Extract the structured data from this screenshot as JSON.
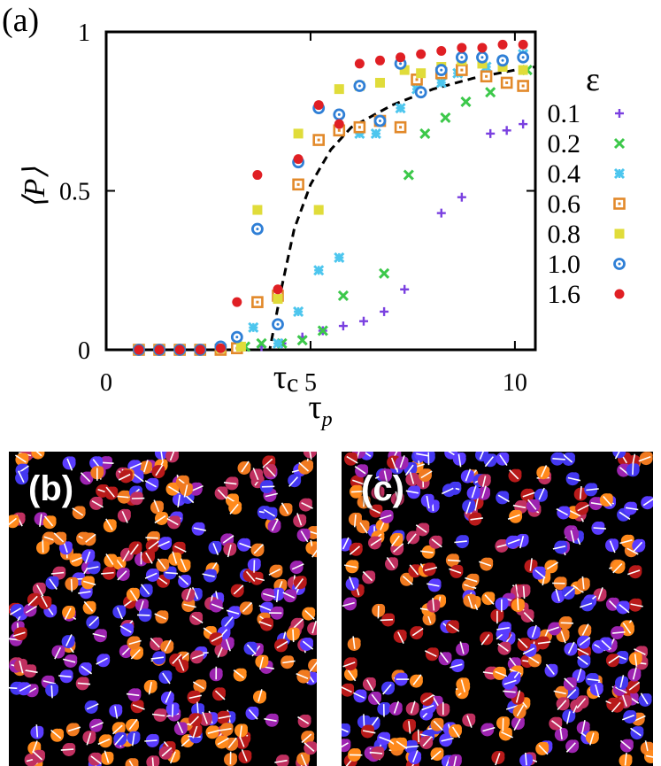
{
  "chart_data": {
    "type": "scatter",
    "panel_label": "(a)",
    "xlabel_main": "τ",
    "xlabel_sub": "p",
    "ylabel": "⟨P⟩",
    "xlim": [
      0,
      10.5
    ],
    "ylim": [
      0,
      1
    ],
    "xticks": [
      0,
      5,
      10
    ],
    "yticks": [
      0,
      0.5,
      1
    ],
    "xtick_labels": [
      "0",
      "5",
      "10"
    ],
    "ytick_labels": [
      "0",
      "0.5",
      "1"
    ],
    "critical_label_main": "τ",
    "critical_label_sub": "c",
    "critical_x": 4.0,
    "legend_title": "ε",
    "fit_curve": {
      "style": "dashed",
      "points": [
        [
          0,
          0
        ],
        [
          4.0,
          0
        ],
        [
          4.3,
          0.2
        ],
        [
          4.6,
          0.38
        ],
        [
          5.0,
          0.52
        ],
        [
          5.5,
          0.63
        ],
        [
          6.0,
          0.7
        ],
        [
          7.0,
          0.77
        ],
        [
          8.0,
          0.82
        ],
        [
          9.0,
          0.855
        ],
        [
          10.0,
          0.88
        ],
        [
          10.5,
          0.89
        ]
      ]
    },
    "series": [
      {
        "name": "0.1",
        "marker": "plus",
        "color": "#7a40e0",
        "x": [
          0.8,
          1.3,
          1.8,
          2.3,
          3.3,
          3.8,
          4.3,
          4.8,
          5.3,
          5.8,
          6.3,
          6.8,
          7.3,
          8.2,
          8.7,
          9.4,
          9.8,
          10.2
        ],
        "y": [
          0,
          0,
          0,
          0,
          0.005,
          0.01,
          0.02,
          0.04,
          0.06,
          0.075,
          0.09,
          0.12,
          0.19,
          0.43,
          0.48,
          0.68,
          0.69,
          0.71
        ]
      },
      {
        "name": "0.2",
        "marker": "cross",
        "color": "#3cc84a",
        "x": [
          0.8,
          1.3,
          1.8,
          2.3,
          2.8,
          3.4,
          3.8,
          4.3,
          4.8,
          5.3,
          5.8,
          6.8,
          7.4,
          7.8,
          8.3,
          8.8,
          9.4,
          9.8,
          10.3
        ],
        "y": [
          0,
          0,
          0,
          0,
          0,
          0.01,
          0.02,
          0.02,
          0.03,
          0.06,
          0.17,
          0.24,
          0.55,
          0.68,
          0.73,
          0.78,
          0.81,
          0.84,
          0.88
        ]
      },
      {
        "name": "0.4",
        "marker": "star",
        "color": "#4dc6ee",
        "x": [
          0.8,
          1.3,
          1.8,
          2.3,
          2.8,
          3.2,
          3.6,
          4.2,
          4.7,
          5.2,
          5.7,
          6.2,
          6.6,
          7.2,
          7.6,
          8.2,
          8.6,
          9.3,
          9.7,
          10.2
        ],
        "y": [
          0,
          0,
          0,
          0,
          0,
          0.005,
          0.07,
          0.02,
          0.12,
          0.25,
          0.29,
          0.68,
          0.68,
          0.76,
          0.82,
          0.84,
          0.87,
          0.89,
          0.91,
          0.93
        ]
      },
      {
        "name": "0.6",
        "marker": "square",
        "color": "#e2892a",
        "x": [
          0.8,
          1.3,
          1.8,
          2.3,
          2.8,
          3.2,
          3.7,
          4.2,
          4.7,
          5.2,
          5.7,
          6.2,
          6.7,
          7.2,
          7.6,
          8.2,
          8.7,
          9.3,
          9.8,
          10.2
        ],
        "y": [
          0,
          0,
          0,
          0,
          0,
          0.005,
          0.15,
          0.17,
          0.52,
          0.66,
          0.69,
          0.7,
          0.72,
          0.7,
          0.85,
          0.87,
          0.88,
          0.86,
          0.84,
          0.83
        ]
      },
      {
        "name": "0.8",
        "marker": "filled-square",
        "color": "#e0dc3a",
        "x": [
          0.8,
          1.3,
          1.8,
          2.3,
          2.8,
          3.3,
          3.7,
          4.2,
          4.7,
          5.2,
          5.7,
          6.2,
          6.7,
          7.3,
          7.7,
          8.2,
          8.7,
          9.2,
          9.7,
          10.2
        ],
        "y": [
          0,
          0,
          0,
          0,
          0.005,
          0.01,
          0.44,
          0.16,
          0.68,
          0.44,
          0.82,
          0.83,
          0.84,
          0.88,
          0.87,
          0.89,
          0.91,
          0.9,
          0.89,
          0.88
        ]
      },
      {
        "name": "1.0",
        "marker": "ring",
        "color": "#2f7fd6",
        "x": [
          0.8,
          1.3,
          1.8,
          2.3,
          2.8,
          3.2,
          3.7,
          4.2,
          4.7,
          5.2,
          5.7,
          6.2,
          6.7,
          7.2,
          7.7,
          8.2,
          8.7,
          9.2,
          9.7,
          10.2
        ],
        "y": [
          0,
          0,
          0,
          0,
          0.01,
          0.04,
          0.38,
          0.08,
          0.59,
          0.76,
          0.74,
          0.83,
          0.72,
          0.9,
          0.81,
          0.88,
          0.92,
          0.92,
          0.91,
          0.92
        ]
      },
      {
        "name": "1.6",
        "marker": "dot",
        "color": "#e01f24",
        "x": [
          0.8,
          1.3,
          1.8,
          2.3,
          2.8,
          3.2,
          3.7,
          4.2,
          4.7,
          5.2,
          5.7,
          6.2,
          6.7,
          7.2,
          7.7,
          8.2,
          8.7,
          9.2,
          9.7,
          10.2
        ],
        "y": [
          0,
          0,
          0,
          0,
          0.005,
          0.15,
          0.55,
          0.19,
          0.6,
          0.77,
          0.71,
          0.9,
          0.91,
          0.92,
          0.93,
          0.94,
          0.95,
          0.95,
          0.96,
          0.96
        ]
      }
    ]
  },
  "panels": {
    "b": {
      "label": "(b)",
      "seed": 11
    },
    "c": {
      "label": "(c)",
      "seed": 29
    }
  },
  "particle_colors": [
    "#4438f0",
    "#5a3cff",
    "#f07a20",
    "#ff8a1c",
    "#b81a1a",
    "#9d24b0",
    "#c03060"
  ]
}
